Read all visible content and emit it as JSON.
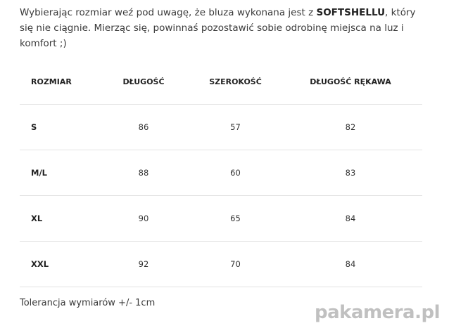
{
  "intro": {
    "before": "Wybierając rozmiar weź pod uwagę, że bluza wykonana jest z ",
    "bold": "SOFTSHELLU",
    "after": ", który się nie ciągnie. Mierząc się, powinnaś pozostawić sobie odrobinę miejsca na luz i komfort ;)"
  },
  "table": {
    "headers": [
      "ROZMIAR",
      "DŁUGOŚĆ",
      "SZEROKOŚĆ",
      "DŁUGOŚĆ RĘKAWA"
    ],
    "rows": [
      [
        "S",
        "86",
        "57",
        "82"
      ],
      [
        "M/L",
        "88",
        "60",
        "83"
      ],
      [
        "XL",
        "90",
        "65",
        "84"
      ],
      [
        "XXL",
        "92",
        "70",
        "84"
      ]
    ]
  },
  "tolerance": "Tolerancja wymiarów +/- 1cm",
  "watermark": "pakamera.pl"
}
